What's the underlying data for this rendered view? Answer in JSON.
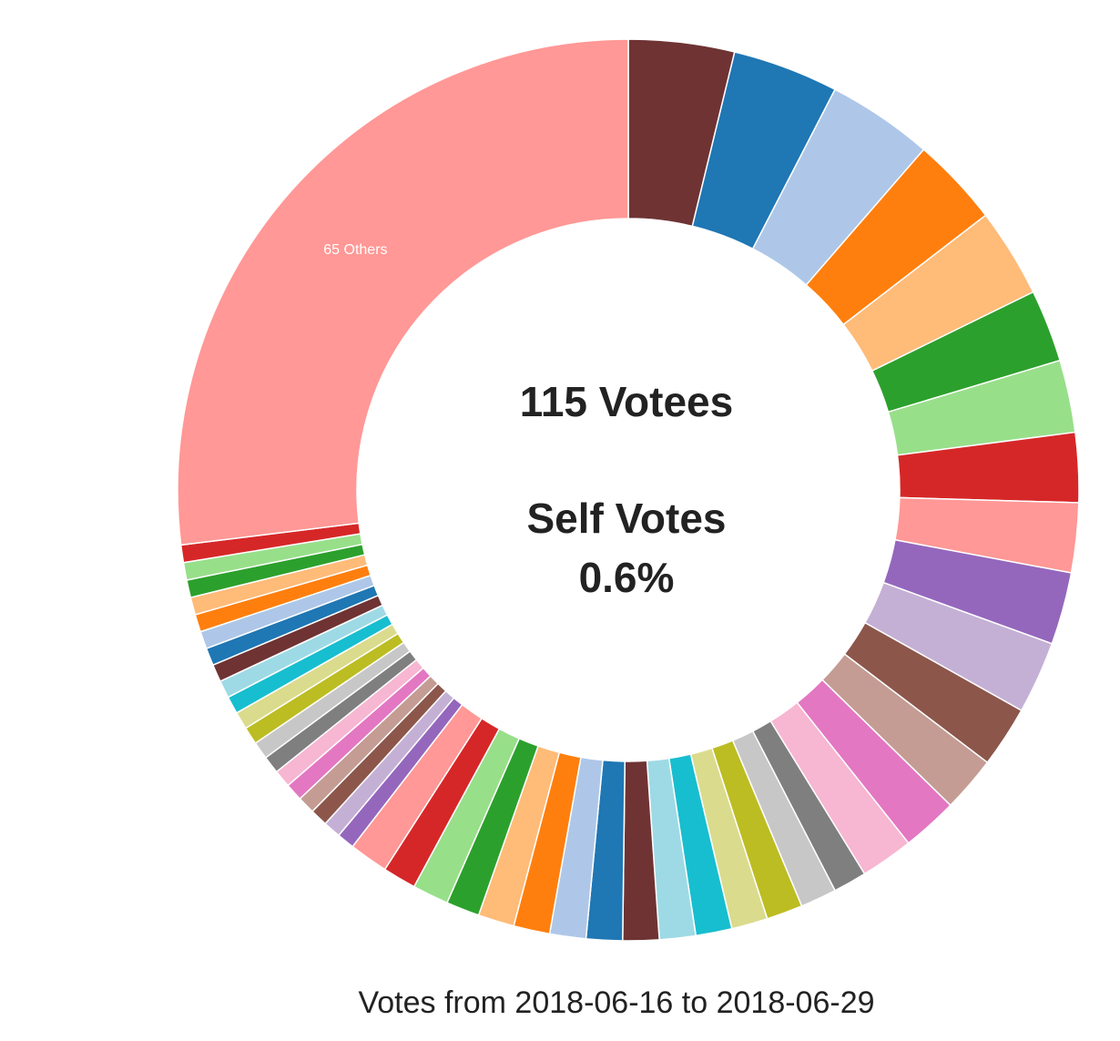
{
  "chart_data": {
    "type": "donut",
    "categories": [
      null,
      null,
      null,
      null,
      null,
      null,
      null,
      null,
      null,
      null,
      null,
      null,
      null,
      null,
      null,
      null,
      null,
      null,
      null,
      null,
      null,
      null,
      null,
      null,
      null,
      null,
      null,
      null,
      null,
      null,
      null,
      null,
      null,
      null,
      null,
      null,
      null,
      null,
      null,
      null,
      null,
      null,
      null,
      null,
      null,
      null,
      null,
      null,
      null,
      null,
      "65 Others"
    ],
    "values": [
      3.8,
      3.8,
      3.8,
      3.2,
      3.2,
      2.6,
      2.6,
      2.5,
      2.5,
      2.6,
      2.6,
      2.2,
      2.0,
      2.0,
      1.9,
      1.2,
      1.3,
      1.3,
      1.3,
      1.3,
      1.3,
      1.3,
      1.3,
      1.3,
      1.3,
      1.3,
      1.2,
      1.3,
      1.2,
      1.4,
      0.63,
      0.63,
      0.63,
      0.63,
      0.63,
      0.63,
      0.63,
      0.63,
      0.63,
      0.63,
      0.63,
      0.63,
      0.63,
      0.63,
      0.63,
      0.63,
      0.63,
      0.63,
      0.63,
      0.63,
      27
    ],
    "colors": [
      "#6f3333",
      "#1f77b4",
      "#aec7e8",
      "#ff7f0e",
      "#ffbb78",
      "#2ca02c",
      "#98df8a",
      "#d62728",
      "#ff9896",
      "#9467bd",
      "#c5b0d5",
      "#8c564b",
      "#c49c94",
      "#e377c2",
      "#f7b6d2",
      "#7f7f7f",
      "#c7c7c7",
      "#bcbd22",
      "#dbdb8d",
      "#17becf",
      "#9edae5",
      "#6f3333",
      "#1f77b4",
      "#aec7e8",
      "#ff7f0e",
      "#ffbb78",
      "#2ca02c",
      "#98df8a",
      "#d62728",
      "#ff9896",
      "#9467bd",
      "#c5b0d5",
      "#8c564b",
      "#c49c94",
      "#e377c2",
      "#f7b6d2",
      "#7f7f7f",
      "#c7c7c7",
      "#bcbd22",
      "#dbdb8d",
      "#17becf",
      "#9edae5",
      "#6f3333",
      "#1f77b4",
      "#aec7e8",
      "#ff7f0e",
      "#ffbb78",
      "#2ca02c",
      "#98df8a",
      "#d62728",
      "#ff9896"
    ],
    "center_text": [
      "115 Votees",
      "Self Votes",
      "0.6%"
    ],
    "caption": "Votes from 2018-06-16 to 2018-06-29"
  }
}
